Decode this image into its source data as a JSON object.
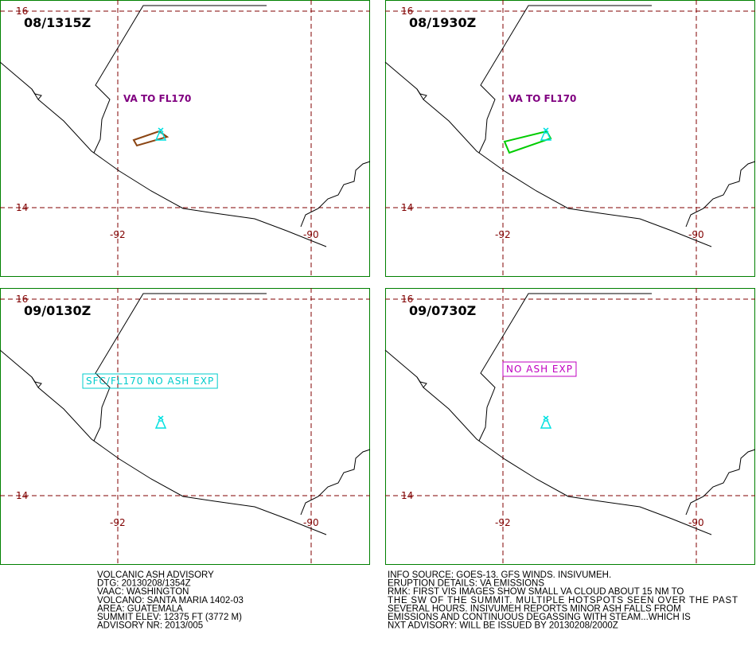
{
  "grid": {
    "lat": [
      "16",
      "14"
    ],
    "lon": [
      "-92",
      "-90"
    ]
  },
  "panels": [
    {
      "time": "08/1315Z",
      "label": "VA TO FL170",
      "label_color": "#800080",
      "label_boxed": false,
      "ash_color": "#8b4513"
    },
    {
      "time": "08/1930Z",
      "label": "VA TO FL170",
      "label_color": "#800080",
      "label_boxed": false,
      "ash_color": "#00cc00"
    },
    {
      "time": "09/0130Z",
      "label": "SFC/FL170 NO ASH EXP",
      "label_color": "#00cccc",
      "label_boxed": true
    },
    {
      "time": "09/0730Z",
      "label": "NO ASH EXP",
      "label_color": "#c000c0",
      "label_boxed": true
    }
  ],
  "advisory": {
    "left": [
      "VOLCANIC ASH ADVISORY",
      "DTG: 20130208/1354Z",
      "VAAC: WASHINGTON",
      "VOLCANO: SANTA MARIA 1402-03",
      "AREA: GUATEMALA",
      "SUMMIT ELEV: 12375 FT (3772 M)",
      "ADVISORY NR: 2013/005"
    ],
    "right": [
      "INFO SOURCE: GOES-13. GFS WINDS. INSIVUMEH.",
      "ERUPTION DETAILS: VA EMISSIONS",
      "RMK: FIRST VIS IMAGES SHOW SMALL VA CLOUD ABOUT 15 NM TO",
      "THE SW OF THE SUMMIT. MULTIPLE HOTSPOTS SEEN OVER THE PAST",
      "SEVERAL HOURS. INSIVUMEH REPORTS MINOR ASH FALLS FROM",
      "EMISSIONS AND CONTINUOUS DEGASSING WITH STEAM...WHICH IS",
      "NXT ADVISORY: WILL BE ISSUED BY 20130208/2000Z"
    ]
  }
}
